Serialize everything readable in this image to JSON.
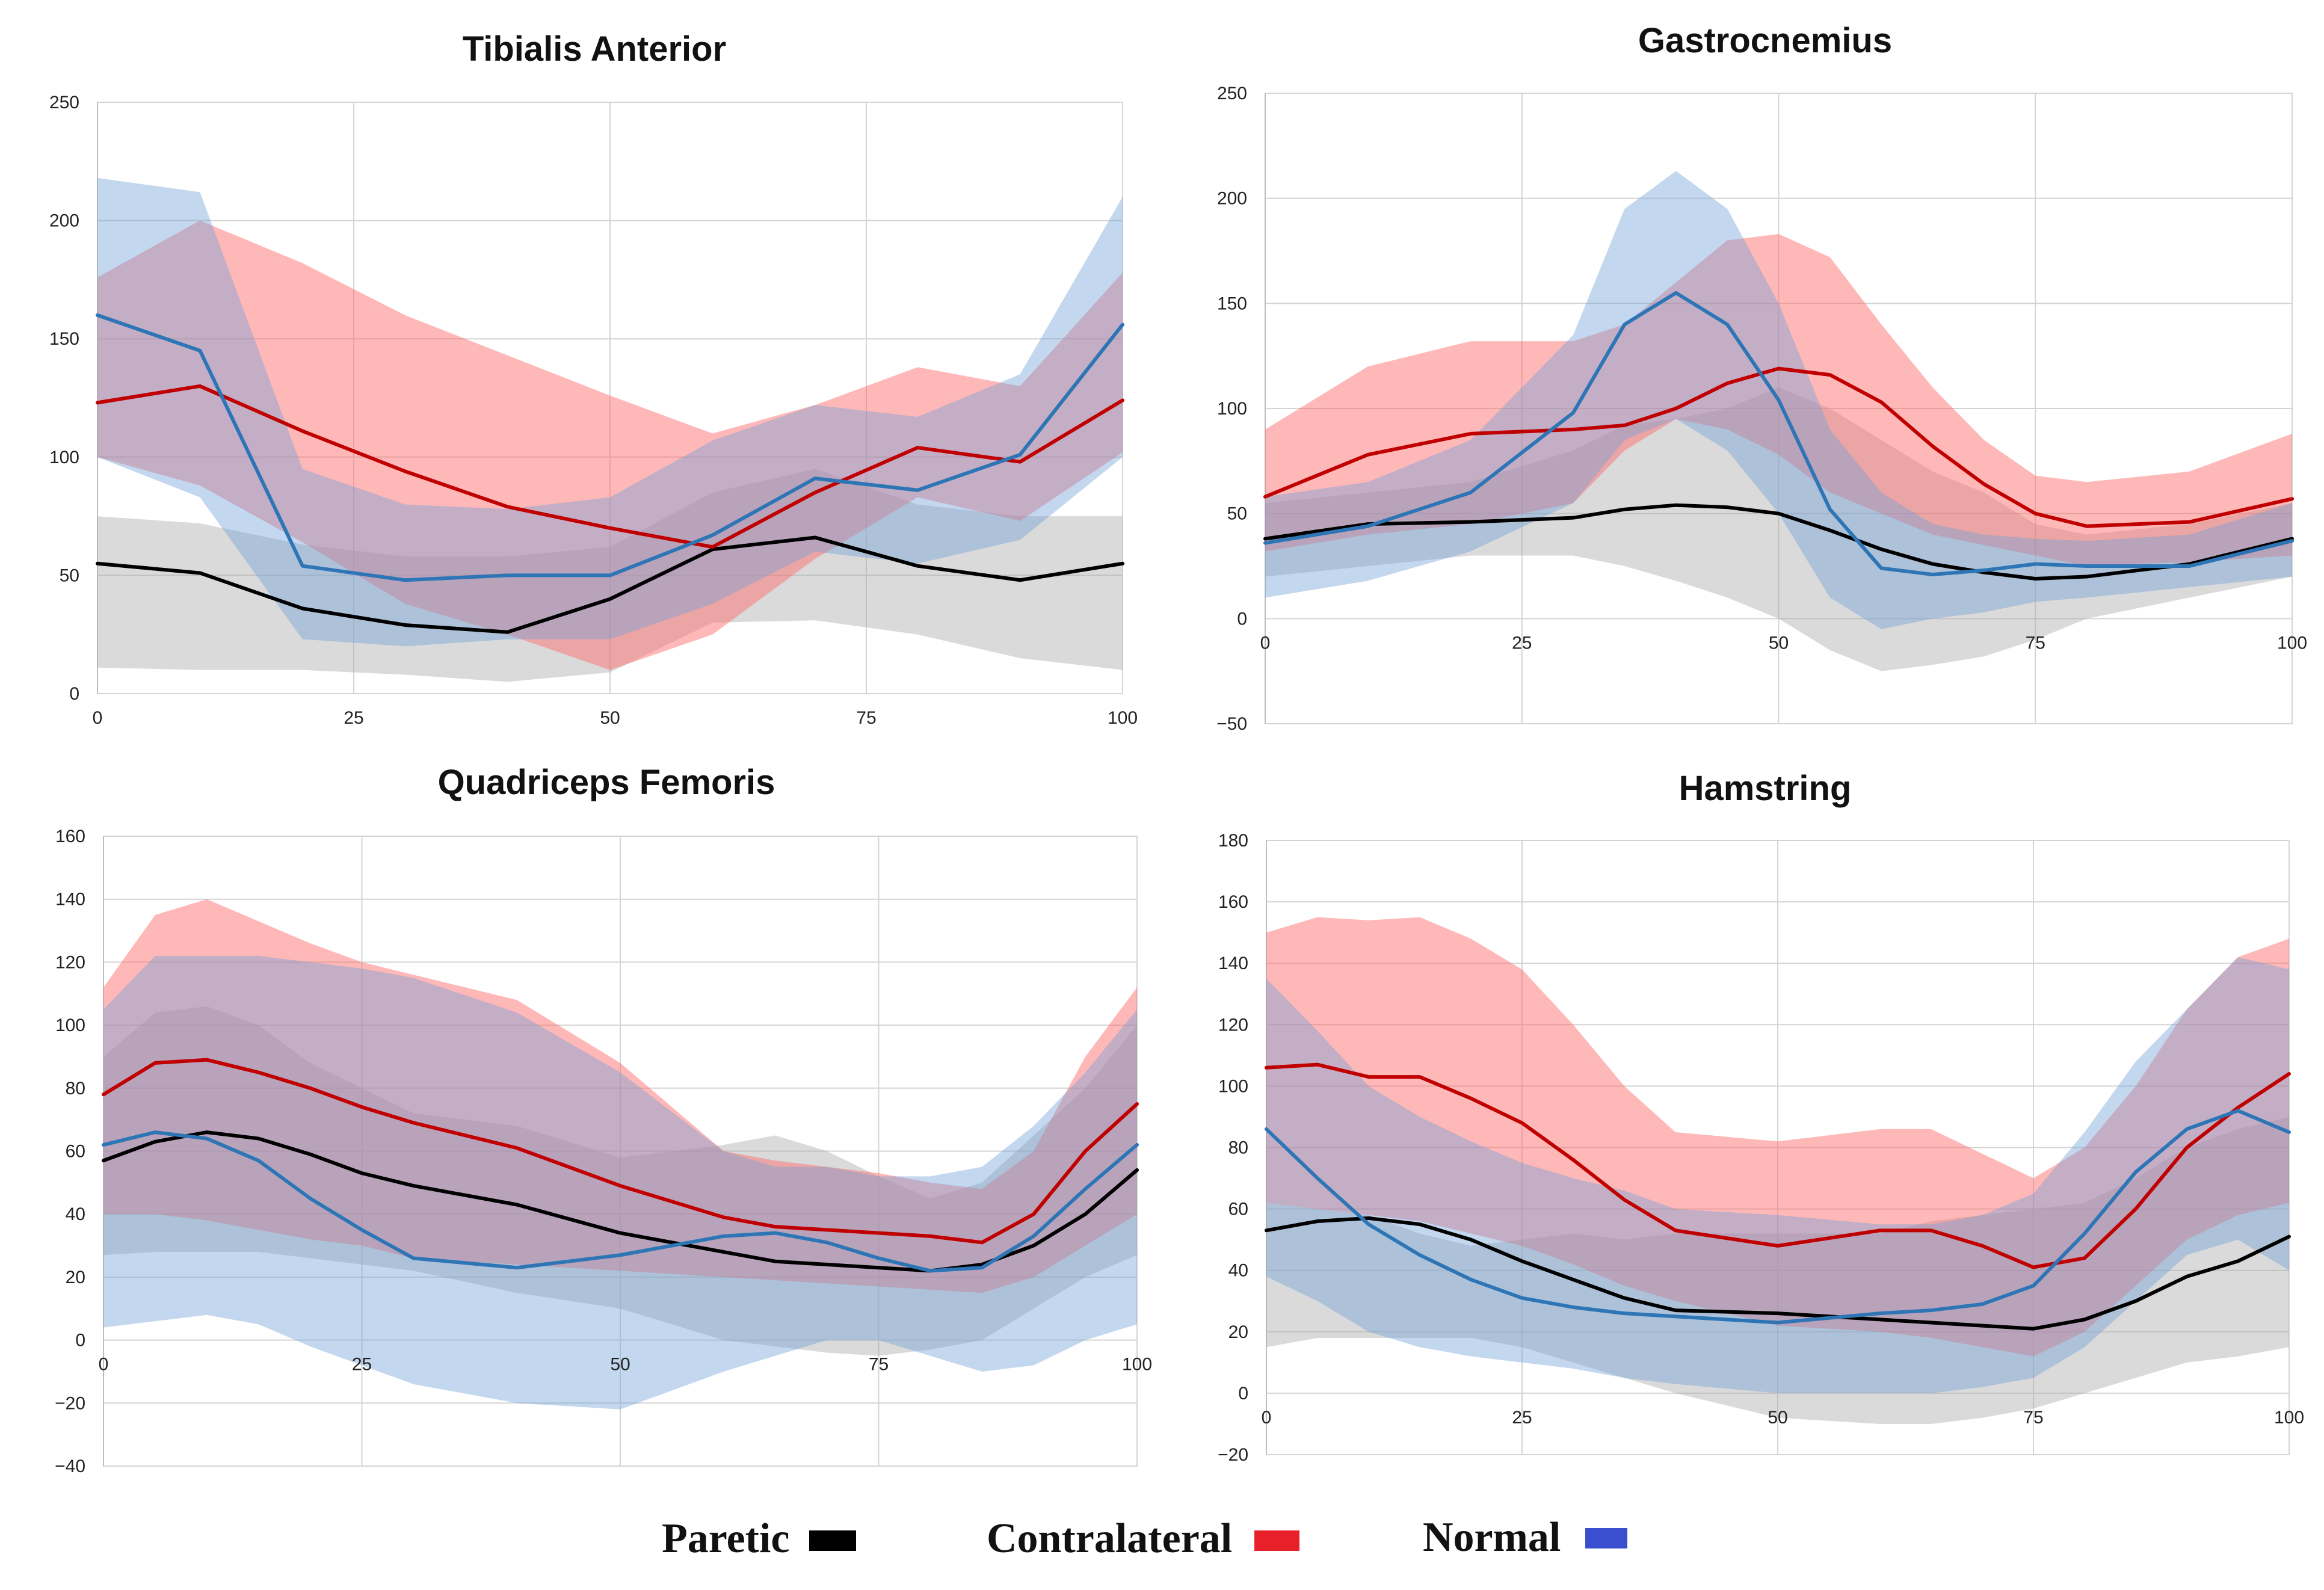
{
  "chart_data": [
    {
      "type": "line",
      "title": "Tibialis Anterior",
      "xlabel": "",
      "ylabel": "",
      "xlim": [
        0,
        100
      ],
      "ylim": [
        0,
        250
      ],
      "xticks": [
        0,
        25,
        50,
        75,
        100
      ],
      "yticks": [
        0,
        50,
        100,
        150,
        200,
        250
      ],
      "x": [
        0,
        10,
        20,
        30,
        40,
        50,
        60,
        70,
        80,
        90,
        100
      ],
      "series": [
        {
          "name": "Paretic",
          "color": "#000000",
          "mean": [
            55,
            51,
            36,
            29,
            26,
            40,
            61,
            66,
            54,
            48,
            55
          ],
          "upper": [
            75,
            72,
            63,
            58,
            58,
            62,
            85,
            95,
            80,
            75,
            75
          ],
          "lower": [
            11,
            10,
            10,
            8,
            5,
            9,
            30,
            31,
            25,
            15,
            10
          ]
        },
        {
          "name": "Contralateral",
          "color": "#c00000",
          "mean": [
            123,
            130,
            111,
            94,
            79,
            70,
            62,
            85,
            104,
            98,
            124
          ],
          "upper": [
            176,
            200,
            182,
            160,
            143,
            126,
            110,
            122,
            138,
            130,
            178
          ],
          "lower": [
            100,
            88,
            64,
            38,
            25,
            10,
            25,
            57,
            83,
            73,
            102
          ]
        },
        {
          "name": "Normal",
          "color": "#2e75b6",
          "mean": [
            160,
            145,
            54,
            48,
            50,
            50,
            67,
            91,
            86,
            101,
            156
          ],
          "upper": [
            218,
            212,
            95,
            80,
            78,
            83,
            107,
            122,
            117,
            135,
            210
          ],
          "lower": [
            100,
            83,
            23,
            20,
            23,
            23,
            38,
            60,
            55,
            65,
            100
          ]
        }
      ]
    },
    {
      "type": "line",
      "title": "Gastrocnemius",
      "xlabel": "",
      "ylabel": "",
      "xlim": [
        0,
        100
      ],
      "ylim": [
        -50,
        250
      ],
      "xticks": [
        0,
        25,
        50,
        75,
        100
      ],
      "yticks": [
        -50,
        0,
        50,
        100,
        150,
        200,
        250
      ],
      "x": [
        0,
        10,
        20,
        30,
        35,
        40,
        45,
        50,
        55,
        60,
        65,
        70,
        75,
        80,
        90,
        100
      ],
      "series": [
        {
          "name": "Paretic",
          "color": "#000000",
          "mean": [
            38,
            45,
            46,
            48,
            52,
            54,
            53,
            50,
            42,
            33,
            26,
            22,
            19,
            20,
            26,
            38
          ],
          "upper": [
            55,
            60,
            65,
            80,
            92,
            95,
            100,
            110,
            100,
            85,
            70,
            60,
            45,
            40,
            45,
            55
          ],
          "lower": [
            20,
            25,
            30,
            30,
            25,
            18,
            10,
            0,
            -15,
            -25,
            -22,
            -18,
            -10,
            0,
            10,
            20
          ]
        },
        {
          "name": "Contralateral",
          "color": "#c00000",
          "mean": [
            58,
            78,
            88,
            90,
            92,
            100,
            112,
            119,
            116,
            103,
            82,
            64,
            50,
            44,
            46,
            57
          ],
          "upper": [
            90,
            120,
            132,
            132,
            140,
            160,
            180,
            183,
            172,
            140,
            110,
            85,
            68,
            65,
            70,
            88
          ],
          "lower": [
            32,
            40,
            45,
            55,
            80,
            95,
            90,
            78,
            60,
            50,
            40,
            35,
            30,
            25,
            27,
            30
          ]
        },
        {
          "name": "Normal",
          "color": "#2e75b6",
          "mean": [
            36,
            44,
            60,
            98,
            140,
            155,
            140,
            104,
            52,
            24,
            21,
            23,
            26,
            25,
            25,
            37
          ],
          "upper": [
            58,
            65,
            85,
            135,
            195,
            213,
            195,
            150,
            90,
            60,
            45,
            40,
            38,
            37,
            40,
            55
          ],
          "lower": [
            10,
            18,
            32,
            55,
            85,
            95,
            80,
            50,
            10,
            -5,
            0,
            3,
            8,
            10,
            15,
            20
          ]
        }
      ]
    },
    {
      "type": "line",
      "title": "Quadriceps Femoris",
      "xlabel": "",
      "ylabel": "",
      "xlim": [
        0,
        100
      ],
      "ylim": [
        -40,
        160
      ],
      "xticks": [
        0,
        25,
        50,
        75,
        100
      ],
      "yticks": [
        -40,
        -20,
        0,
        20,
        40,
        60,
        80,
        100,
        120,
        140,
        160
      ],
      "x": [
        0,
        5,
        10,
        15,
        20,
        25,
        30,
        40,
        50,
        60,
        65,
        70,
        75,
        80,
        85,
        90,
        95,
        100
      ],
      "series": [
        {
          "name": "Paretic",
          "color": "#000000",
          "mean": [
            57,
            63,
            66,
            64,
            59,
            53,
            49,
            43,
            34,
            28,
            25,
            24,
            23,
            22,
            24,
            30,
            40,
            54
          ],
          "upper": [
            90,
            104,
            106,
            100,
            88,
            80,
            72,
            68,
            58,
            62,
            65,
            60,
            52,
            45,
            50,
            65,
            80,
            100
          ],
          "lower": [
            27,
            28,
            28,
            28,
            26,
            24,
            22,
            15,
            10,
            0,
            -2,
            -4,
            -5,
            -3,
            0,
            10,
            20,
            27
          ]
        },
        {
          "name": "Contralateral",
          "color": "#c00000",
          "mean": [
            78,
            88,
            89,
            85,
            80,
            74,
            69,
            61,
            49,
            39,
            36,
            35,
            34,
            33,
            31,
            40,
            60,
            75
          ],
          "upper": [
            112,
            135,
            140,
            133,
            126,
            120,
            116,
            108,
            88,
            60,
            57,
            55,
            53,
            50,
            48,
            60,
            90,
            112
          ],
          "lower": [
            40,
            40,
            38,
            35,
            32,
            30,
            26,
            24,
            22,
            20,
            19,
            18,
            17,
            16,
            15,
            20,
            30,
            40
          ]
        },
        {
          "name": "Normal",
          "color": "#2e75b6",
          "mean": [
            62,
            66,
            64,
            57,
            45,
            35,
            26,
            23,
            27,
            33,
            34,
            31,
            26,
            22,
            23,
            33,
            48,
            62
          ],
          "upper": [
            105,
            122,
            122,
            122,
            120,
            118,
            115,
            104,
            85,
            60,
            55,
            55,
            52,
            52,
            55,
            68,
            85,
            105
          ],
          "lower": [
            4,
            6,
            8,
            5,
            -2,
            -8,
            -14,
            -20,
            -22,
            -10,
            -5,
            0,
            0,
            -5,
            -10,
            -8,
            0,
            5
          ]
        }
      ]
    },
    {
      "type": "line",
      "title": "Hamstring",
      "xlabel": "",
      "ylabel": "",
      "xlim": [
        0,
        100
      ],
      "ylim": [
        -20,
        180
      ],
      "xticks": [
        0,
        25,
        50,
        75,
        100
      ],
      "yticks": [
        -20,
        0,
        20,
        40,
        60,
        80,
        100,
        120,
        140,
        160,
        180
      ],
      "x": [
        0,
        5,
        10,
        15,
        20,
        25,
        30,
        35,
        40,
        50,
        60,
        65,
        70,
        75,
        80,
        85,
        90,
        95,
        100
      ],
      "series": [
        {
          "name": "Paretic",
          "color": "#000000",
          "mean": [
            53,
            56,
            57,
            55,
            50,
            43,
            37,
            31,
            27,
            26,
            24,
            23,
            22,
            21,
            24,
            30,
            38,
            43,
            51
          ],
          "upper": [
            62,
            60,
            58,
            52,
            48,
            50,
            52,
            50,
            52,
            52,
            52,
            56,
            58,
            60,
            62,
            70,
            80,
            86,
            90
          ],
          "lower": [
            15,
            18,
            18,
            18,
            18,
            15,
            10,
            5,
            0,
            -8,
            -10,
            -10,
            -8,
            -5,
            0,
            5,
            10,
            12,
            15
          ]
        },
        {
          "name": "Contralateral",
          "color": "#c00000",
          "mean": [
            106,
            107,
            103,
            103,
            96,
            88,
            76,
            63,
            53,
            48,
            53,
            53,
            48,
            41,
            44,
            60,
            80,
            93,
            104
          ],
          "upper": [
            150,
            155,
            154,
            155,
            148,
            138,
            120,
            100,
            85,
            82,
            86,
            86,
            78,
            70,
            80,
            100,
            125,
            142,
            148
          ],
          "lower": [
            62,
            60,
            58,
            56,
            52,
            48,
            42,
            35,
            30,
            22,
            20,
            18,
            15,
            12,
            20,
            35,
            50,
            58,
            62
          ]
        },
        {
          "name": "Normal",
          "color": "#2e75b6",
          "mean": [
            86,
            70,
            55,
            45,
            37,
            31,
            28,
            26,
            25,
            23,
            26,
            27,
            29,
            35,
            52,
            72,
            86,
            92,
            85
          ],
          "upper": [
            135,
            118,
            100,
            90,
            82,
            75,
            70,
            66,
            60,
            58,
            55,
            55,
            58,
            65,
            85,
            108,
            125,
            142,
            138
          ],
          "lower": [
            38,
            30,
            20,
            15,
            12,
            10,
            8,
            5,
            3,
            0,
            0,
            0,
            2,
            5,
            15,
            30,
            45,
            50,
            40
          ]
        }
      ]
    }
  ],
  "legend": [
    {
      "label": "Paretic",
      "color": "#000000"
    },
    {
      "label": "Contralateral",
      "color": "#e8202a"
    },
    {
      "label": "Normal",
      "color": "#3a4fd0"
    }
  ]
}
